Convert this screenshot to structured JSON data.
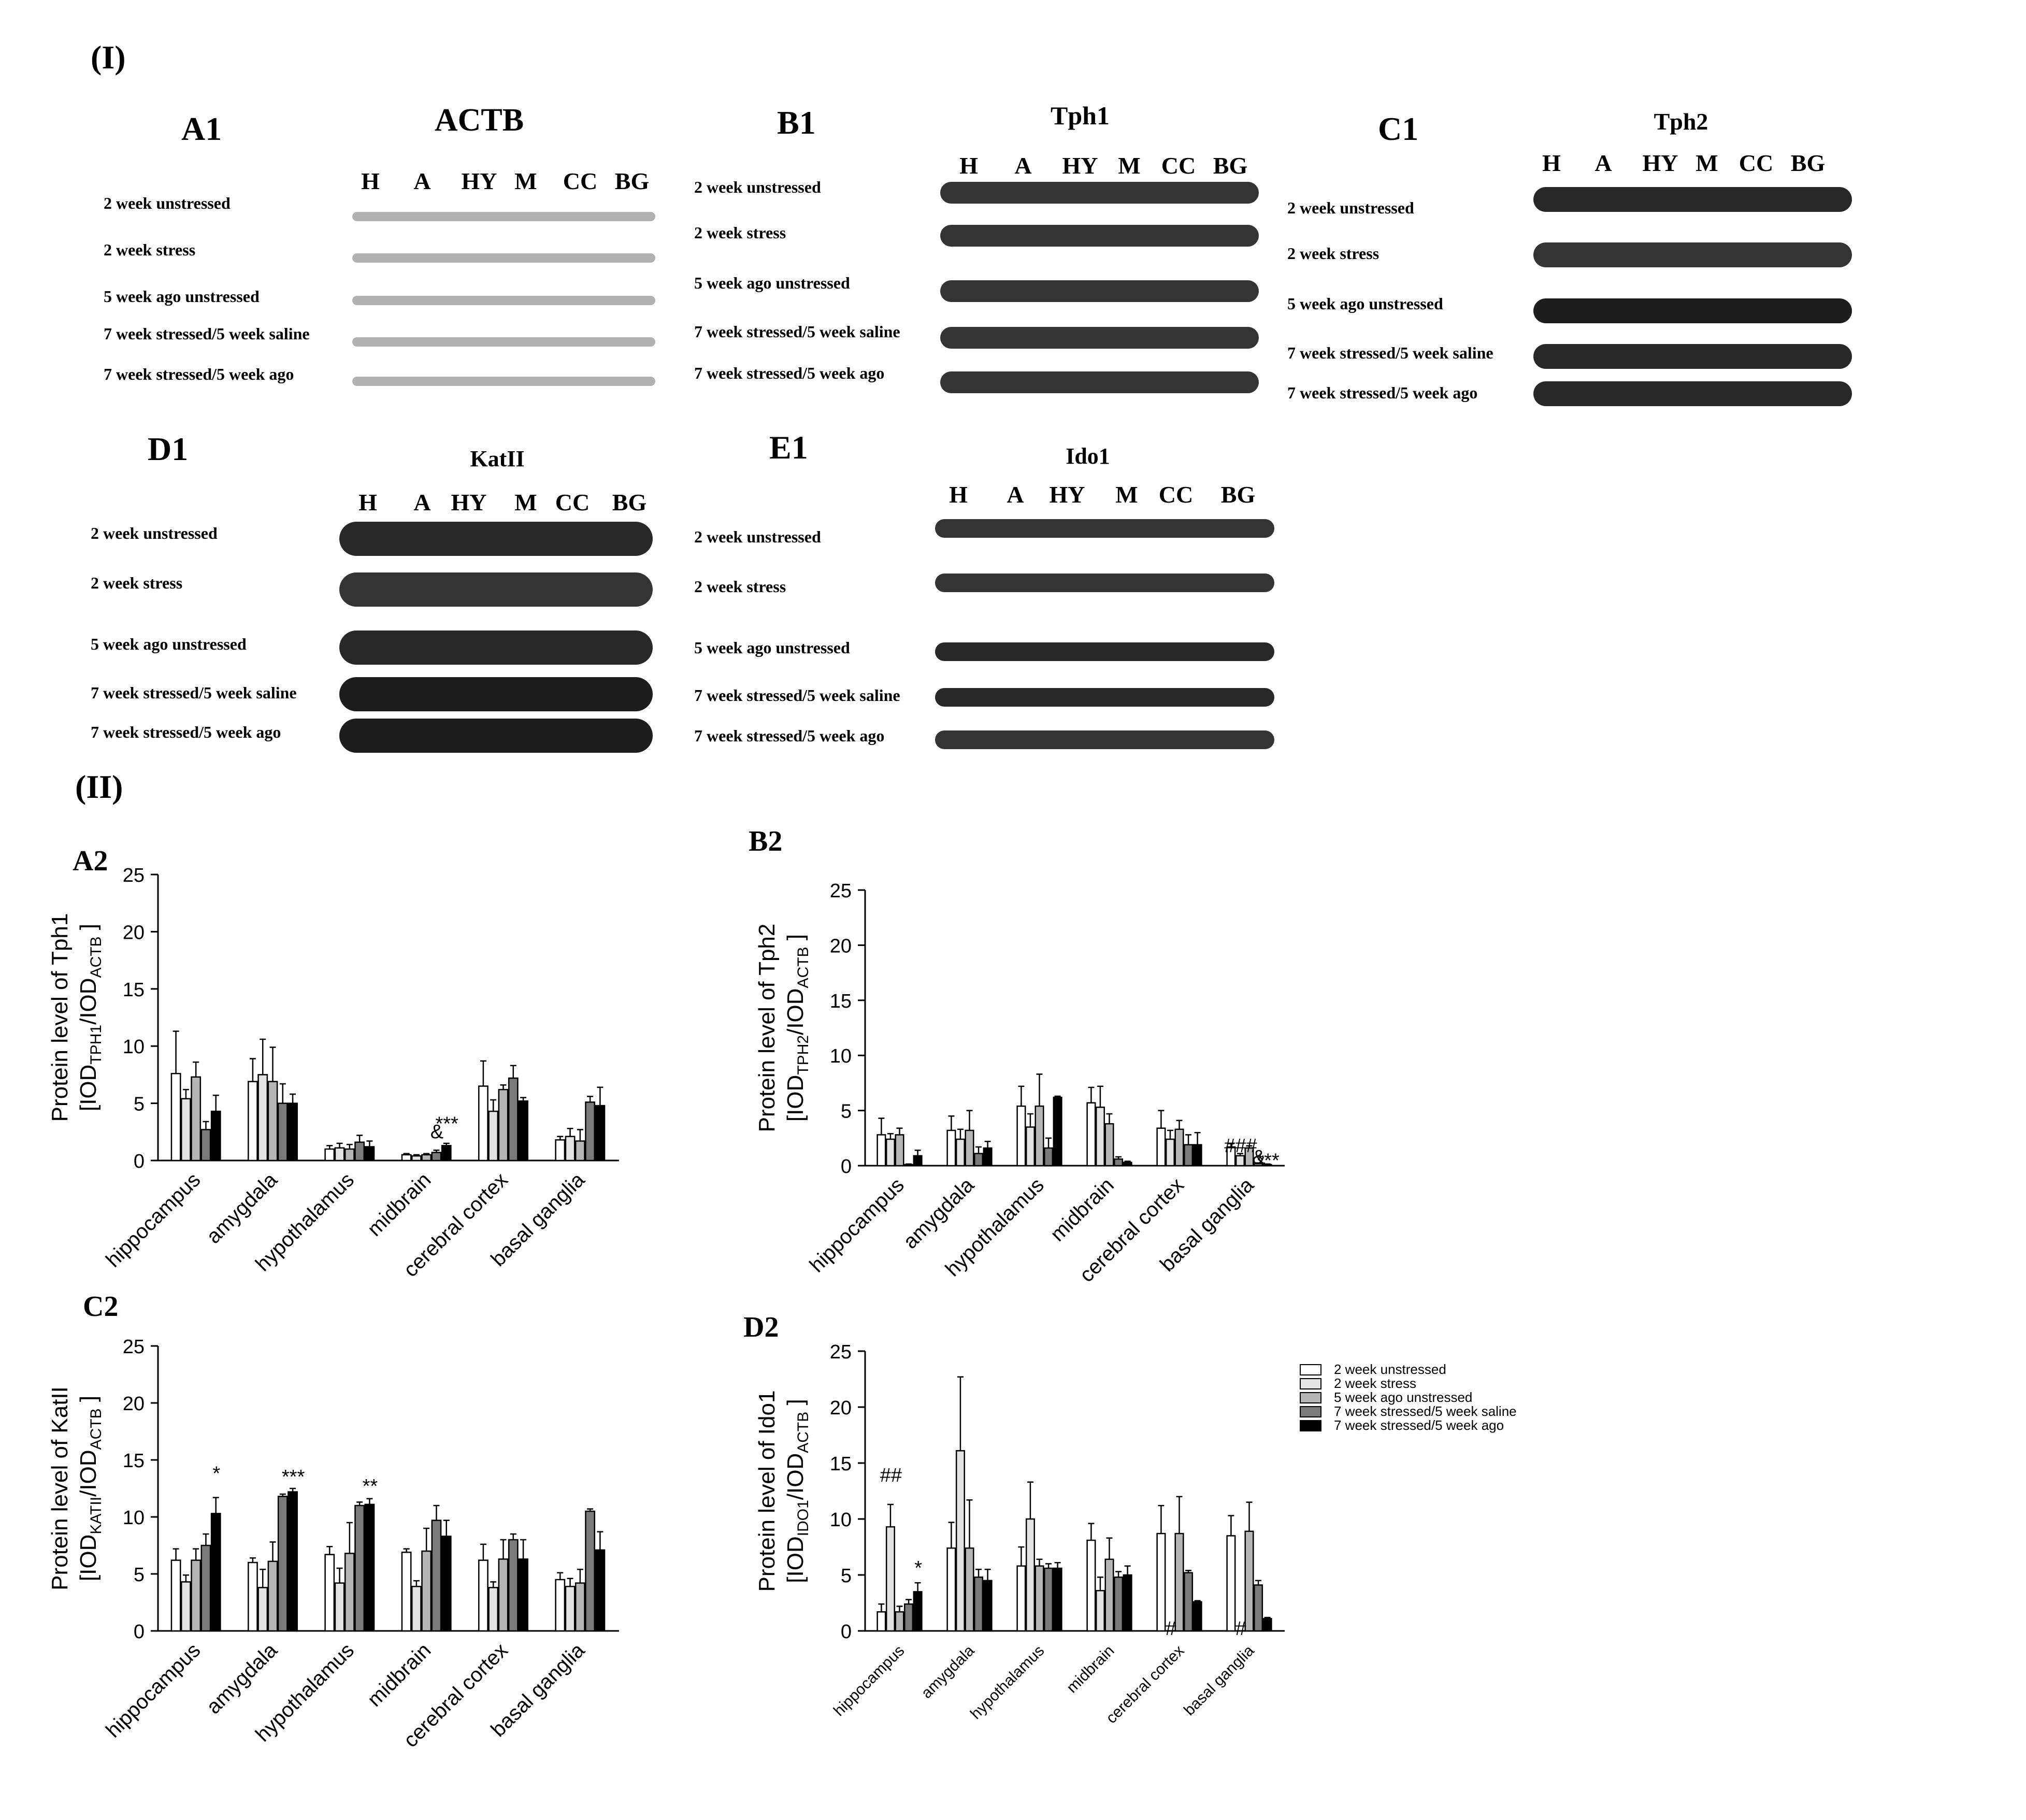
{
  "section_labels": {
    "part1": "(I)",
    "part2": "(II)"
  },
  "row_labels": [
    "2 week unstressed",
    "2 week stress",
    "5 week ago unstressed",
    "7 week stressed/5 week saline",
    "7 week stressed/5 week ago"
  ],
  "blots": [
    {
      "panel": "A1",
      "protein": "ACTB",
      "lanes": [
        "H",
        "A",
        "HY",
        "M",
        "CC",
        "BG"
      ]
    },
    {
      "panel": "B1",
      "protein": "Tph1",
      "lanes": [
        "H",
        "A",
        "HY",
        "M",
        "CC",
        "BG"
      ]
    },
    {
      "panel": "C1",
      "protein": "Tph2",
      "lanes": [
        "H",
        "A",
        "HY",
        "M",
        "CC",
        "BG"
      ]
    },
    {
      "panel": "D1",
      "protein": "KatII",
      "lanes": [
        "H",
        "A",
        "HY",
        "M",
        "CC",
        "BG"
      ]
    },
    {
      "panel": "E1",
      "protein": "Ido1",
      "lanes": [
        "H",
        "A",
        "HY",
        "M",
        "CC",
        "BG"
      ]
    }
  ],
  "legend": {
    "entries": [
      "2 week unstressed",
      "2 week stress",
      "5 week ago unstressed",
      "7 week stressed/5 week saline",
      "7 week stressed/5 week ago"
    ],
    "colors": [
      "#ffffff",
      "#e3e3e3",
      "#b5b5b5",
      "#7a7a7a",
      "#000000"
    ]
  },
  "chart_data": [
    {
      "panel": "A2",
      "type": "bar",
      "ylabel": "Protein level of Tph1",
      "ylabel2": "[IOD",
      "ylabel2_sub": "TPH1",
      "ylabel2_mid": "/IOD",
      "ylabel2_sub2": "ACTB",
      "ylabel2_end": " ]",
      "ylim": [
        0,
        25
      ],
      "yticks": [
        0,
        5,
        10,
        15,
        20,
        25
      ],
      "categories": [
        "hippocampus",
        "amygdala",
        "hypothalamus",
        "midbrain",
        "cerebral cortex",
        "basal ganglia"
      ],
      "series": [
        {
          "name": "2 week unstressed",
          "values": [
            7.6,
            6.9,
            1.0,
            0.5,
            6.5,
            1.8
          ],
          "errors": [
            3.7,
            2.0,
            0.3,
            0.1,
            2.2,
            0.3
          ]
        },
        {
          "name": "2 week stress",
          "values": [
            5.4,
            7.5,
            1.1,
            0.4,
            4.3,
            2.1
          ],
          "errors": [
            0.8,
            3.1,
            0.4,
            0.1,
            1.0,
            0.7
          ]
        },
        {
          "name": "5 week ago unstressed",
          "values": [
            7.3,
            6.9,
            1.0,
            0.5,
            6.2,
            1.7
          ],
          "errors": [
            1.3,
            3.0,
            0.4,
            0.1,
            0.4,
            1.0
          ]
        },
        {
          "name": "7 week stressed/5 week saline",
          "values": [
            2.7,
            5.0,
            1.6,
            0.7,
            7.2,
            5.1
          ],
          "errors": [
            0.7,
            1.7,
            0.6,
            0.2,
            1.1,
            0.5
          ]
        },
        {
          "name": "7 week stressed/5 week ago",
          "values": [
            4.3,
            5.0,
            1.2,
            1.3,
            5.2,
            4.8
          ],
          "errors": [
            1.4,
            0.8,
            0.5,
            0.2,
            0.3,
            1.6
          ]
        }
      ],
      "annotations": [
        {
          "text": "&",
          "cat": 3,
          "series": 3,
          "above": 1.5
        },
        {
          "text": "***",
          "cat": 3,
          "series": 4,
          "above": 1.6
        }
      ]
    },
    {
      "panel": "B2",
      "type": "bar",
      "ylabel": "Protein level of Tph2",
      "ylabel2": "[IOD",
      "ylabel2_sub": "TPH2",
      "ylabel2_mid": "/IOD",
      "ylabel2_sub2": "ACTB",
      "ylabel2_end": " ]",
      "ylim": [
        0,
        25
      ],
      "yticks": [
        0,
        5,
        10,
        15,
        20,
        25
      ],
      "categories": [
        "hippocampus",
        "amygdala",
        "hypothalamus",
        "midbrain",
        "cerebral cortex",
        "basal ganglia"
      ],
      "series": [
        {
          "name": "2 week unstressed",
          "values": [
            2.8,
            3.2,
            5.4,
            5.7,
            3.4,
            1.7
          ],
          "errors": [
            1.5,
            1.3,
            1.8,
            1.4,
            1.6,
            0.3
          ]
        },
        {
          "name": "2 week stress",
          "values": [
            2.4,
            2.4,
            3.5,
            5.3,
            2.4,
            0.9
          ],
          "errors": [
            0.5,
            0.9,
            1.2,
            1.9,
            0.8,
            0.2
          ]
        },
        {
          "name": "5 week ago unstressed",
          "values": [
            2.8,
            3.2,
            5.4,
            3.8,
            3.3,
            1.6
          ],
          "errors": [
            0.6,
            1.8,
            2.9,
            0.9,
            0.8,
            0.2
          ]
        },
        {
          "name": "7 week stressed/5 week saline",
          "values": [
            0.1,
            1.1,
            1.6,
            0.6,
            1.9,
            0.2
          ],
          "errors": [
            0.05,
            0.6,
            0.9,
            0.2,
            0.9,
            0.05
          ]
        },
        {
          "name": "7 week stressed/5 week ago",
          "values": [
            0.9,
            1.6,
            6.2,
            0.3,
            1.9,
            0.1
          ],
          "errors": [
            0.5,
            0.6,
            0.1,
            0.1,
            1.1,
            0.05
          ]
        }
      ],
      "annotations": [
        {
          "text": "###",
          "cat": 5,
          "series": 1,
          "above": 0.6
        },
        {
          "text": "&",
          "cat": 5,
          "series": 3,
          "above": 0.4
        },
        {
          "text": "***",
          "cat": 5,
          "series": 4,
          "above": 0.2
        }
      ]
    },
    {
      "panel": "C2",
      "type": "bar",
      "ylabel": "Protein level of KatII",
      "ylabel2": "[IOD",
      "ylabel2_sub": "KATII",
      "ylabel2_mid": "/IOD",
      "ylabel2_sub2": "ACTB",
      "ylabel2_end": " ]",
      "ylim": [
        0,
        25
      ],
      "yticks": [
        0,
        5,
        10,
        15,
        20,
        25
      ],
      "categories": [
        "hippocampus",
        "amygdala",
        "hypothalamus",
        "midbrain",
        "cerebral cortex",
        "basal ganglia"
      ],
      "series": [
        {
          "name": "2 week unstressed",
          "values": [
            6.2,
            6.0,
            6.7,
            6.9,
            6.2,
            4.5
          ],
          "errors": [
            1.0,
            0.4,
            0.7,
            0.3,
            1.4,
            0.6
          ]
        },
        {
          "name": "2 week stress",
          "values": [
            4.3,
            3.8,
            4.2,
            3.9,
            3.8,
            3.9
          ],
          "errors": [
            0.6,
            1.6,
            1.3,
            0.5,
            0.5,
            0.7
          ]
        },
        {
          "name": "5 week ago unstressed",
          "values": [
            6.2,
            6.1,
            6.8,
            7.0,
            6.3,
            4.2
          ],
          "errors": [
            1.0,
            1.7,
            2.7,
            2.0,
            1.7,
            1.2
          ]
        },
        {
          "name": "7 week stressed/5 week saline",
          "values": [
            7.5,
            11.8,
            11.0,
            9.7,
            8.0,
            10.5
          ],
          "errors": [
            1.0,
            0.2,
            0.3,
            1.3,
            0.5,
            0.2
          ]
        },
        {
          "name": "7 week stressed/5 week ago",
          "values": [
            10.3,
            12.2,
            11.1,
            8.3,
            6.3,
            7.1
          ],
          "errors": [
            1.4,
            0.3,
            0.5,
            1.4,
            1.7,
            1.6
          ]
        }
      ],
      "annotations": [
        {
          "text": "*",
          "cat": 0,
          "series": 4,
          "above": 2.0
        },
        {
          "text": "***",
          "cat": 1,
          "series": 4,
          "above": 0.9
        },
        {
          "text": "**",
          "cat": 2,
          "series": 4,
          "above": 1.0
        }
      ]
    },
    {
      "panel": "D2",
      "type": "bar",
      "ylabel": "Protein level of Ido1",
      "ylabel2": "[IOD",
      "ylabel2_sub": "IDO1",
      "ylabel2_mid": "/IOD",
      "ylabel2_sub2": "ACTB",
      "ylabel2_end": " ]",
      "ylim": [
        0,
        25
      ],
      "yticks": [
        0,
        5,
        10,
        15,
        20,
        25
      ],
      "categories": [
        "hippocampus",
        "amygdala",
        "hypothalamus",
        "midbrain",
        "cerebral cortex",
        "basal ganglia"
      ],
      "series": [
        {
          "name": "2 week unstressed",
          "values": [
            1.7,
            7.4,
            5.8,
            8.1,
            8.7,
            8.5
          ],
          "errors": [
            0.7,
            2.3,
            1.7,
            1.5,
            2.5,
            1.8
          ]
        },
        {
          "name": "2 week stress",
          "values": [
            9.3,
            16.1,
            10.0,
            3.6,
            0.0,
            0.0
          ],
          "errors": [
            2.0,
            6.6,
            3.3,
            1.2,
            0,
            0
          ]
        },
        {
          "name": "5 week ago unstressed",
          "values": [
            1.7,
            7.4,
            5.8,
            6.4,
            8.7,
            8.9
          ],
          "errors": [
            0.5,
            4.3,
            0.6,
            1.9,
            3.3,
            2.6
          ]
        },
        {
          "name": "7 week stressed/5 week saline",
          "values": [
            2.4,
            4.8,
            5.6,
            4.8,
            5.2,
            4.1
          ],
          "errors": [
            0.4,
            0.7,
            0.4,
            0.5,
            0.2,
            0.4
          ]
        },
        {
          "name": "7 week stressed/5 week ago",
          "values": [
            3.5,
            4.5,
            5.6,
            5.0,
            2.6,
            1.1
          ],
          "errors": [
            0.8,
            1.0,
            0.5,
            0.8,
            0.1,
            0.1
          ]
        }
      ],
      "annotations": [
        {
          "text": "##",
          "cat": 0,
          "series": 1,
          "above": 2.5
        },
        {
          "text": "*",
          "cat": 0,
          "series": 4,
          "above": 1.2
        },
        {
          "text": "#",
          "cat": 4,
          "series": 1,
          "above": 0.1
        },
        {
          "text": "#",
          "cat": 5,
          "series": 1,
          "above": 0.1
        }
      ]
    }
  ]
}
